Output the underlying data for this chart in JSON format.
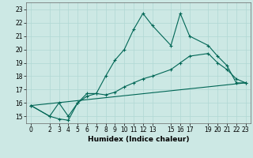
{
  "title": "",
  "xlabel": "Humidex (Indice chaleur)",
  "bg_color": "#cce8e4",
  "grid_color": "#b0d8d4",
  "line_color": "#006655",
  "xlim": [
    -0.5,
    23.5
  ],
  "ylim": [
    14.5,
    23.5
  ],
  "xticks": [
    0,
    2,
    3,
    4,
    5,
    6,
    7,
    8,
    9,
    10,
    11,
    12,
    13,
    15,
    16,
    17,
    19,
    20,
    21,
    22,
    23
  ],
  "yticks": [
    15,
    16,
    17,
    18,
    19,
    20,
    21,
    22,
    23
  ],
  "line1_x": [
    0,
    2,
    3,
    4,
    5,
    6,
    7,
    8,
    9,
    10,
    11,
    12,
    13,
    15,
    16,
    17,
    19,
    20,
    21,
    22,
    23
  ],
  "line1_y": [
    15.8,
    15.0,
    14.8,
    14.7,
    16.0,
    16.7,
    16.7,
    18.0,
    19.2,
    20.0,
    21.5,
    22.7,
    21.8,
    20.3,
    22.7,
    21.0,
    20.3,
    19.5,
    18.8,
    17.5,
    17.5
  ],
  "line2_x": [
    0,
    2,
    3,
    4,
    5,
    6,
    7,
    8,
    9,
    10,
    11,
    12,
    13,
    15,
    16,
    17,
    19,
    20,
    21,
    22,
    23
  ],
  "line2_y": [
    15.8,
    15.0,
    16.0,
    15.0,
    16.0,
    16.5,
    16.7,
    16.6,
    16.8,
    17.2,
    17.5,
    17.8,
    18.0,
    18.5,
    19.0,
    19.5,
    19.7,
    19.0,
    18.5,
    17.8,
    17.5
  ],
  "line3_x": [
    0,
    23
  ],
  "line3_y": [
    15.8,
    17.5
  ],
  "tick_fontsize": 5.5,
  "xlabel_fontsize": 6.5
}
